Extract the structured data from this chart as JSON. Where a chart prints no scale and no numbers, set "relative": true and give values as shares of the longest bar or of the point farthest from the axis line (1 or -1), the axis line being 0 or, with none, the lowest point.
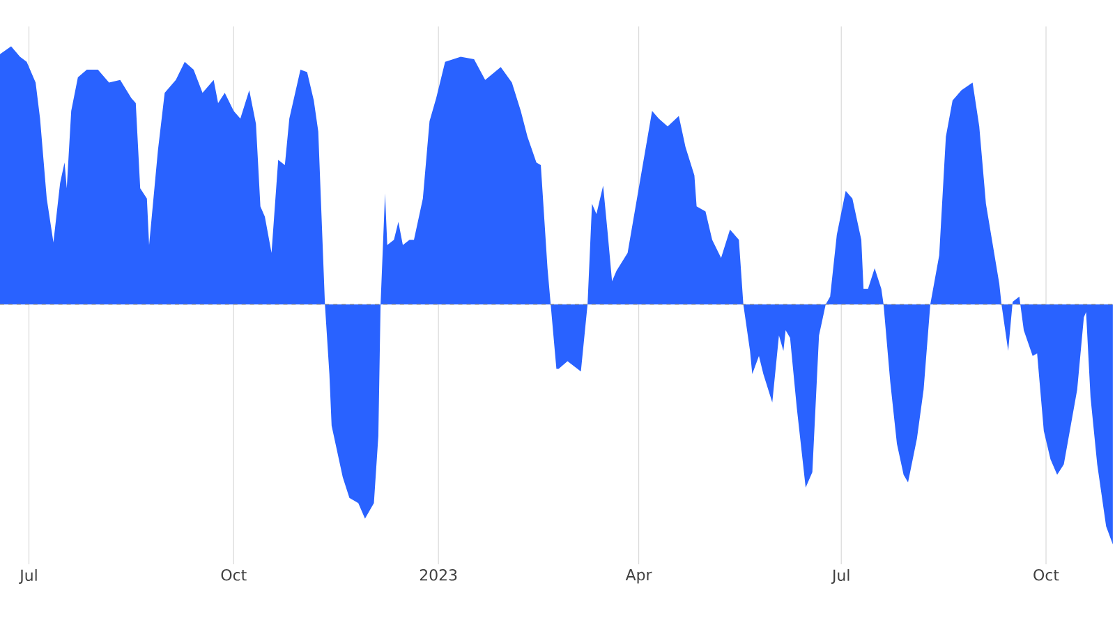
{
  "chart_data": {
    "type": "area",
    "relative": true,
    "color": "#2962ff",
    "grid": "x",
    "ref_lines": [
      {
        "axis": "y",
        "value": 0,
        "line_style": "dashed",
        "color": "#8c8c8c"
      }
    ],
    "xlim": [
      "2022-06-18",
      "2023-11-01"
    ],
    "xticks": [
      {
        "value": "2022-07-01",
        "label": "Jul"
      },
      {
        "value": "2022-10-01",
        "label": "Oct"
      },
      {
        "value": "2023-01-01",
        "label": "2023"
      },
      {
        "value": "2023-04-01",
        "label": "Apr"
      },
      {
        "value": "2023-07-01",
        "label": "Jul"
      },
      {
        "value": "2023-10-01",
        "label": "Oct"
      }
    ],
    "x": [
      "2022-06-18",
      "2022-06-23",
      "2022-06-27",
      "2022-06-30",
      "2022-07-04",
      "2022-07-06",
      "2022-07-09",
      "2022-07-12",
      "2022-07-15",
      "2022-07-17",
      "2022-07-18",
      "2022-07-20",
      "2022-07-23",
      "2022-07-27",
      "2022-08-01",
      "2022-08-06",
      "2022-08-11",
      "2022-08-16",
      "2022-08-18",
      "2022-08-20",
      "2022-08-23",
      "2022-08-24",
      "2022-08-28",
      "2022-08-31",
      "2022-09-05",
      "2022-09-09",
      "2022-09-13",
      "2022-09-17",
      "2022-09-22",
      "2022-09-24",
      "2022-09-27",
      "2022-10-01",
      "2022-10-04",
      "2022-10-08",
      "2022-10-11",
      "2022-10-13",
      "2022-10-15",
      "2022-10-18",
      "2022-10-21",
      "2022-10-24",
      "2022-10-26",
      "2022-10-31",
      "2022-11-03",
      "2022-11-06",
      "2022-11-08",
      "2022-11-11",
      "2022-11-13",
      "2022-11-14",
      "2022-11-19",
      "2022-11-22",
      "2022-11-26",
      "2022-11-29",
      "2022-12-03",
      "2022-12-05",
      "2022-12-06",
      "2022-12-08",
      "2022-12-09",
      "2022-12-12",
      "2022-12-14",
      "2022-12-16",
      "2022-12-19",
      "2022-12-21",
      "2022-12-25",
      "2022-12-28",
      "2022-12-31",
      "2023-01-04",
      "2023-01-11",
      "2023-01-17",
      "2023-01-22",
      "2023-01-29",
      "2023-02-03",
      "2023-02-07",
      "2023-02-10",
      "2023-02-14",
      "2023-02-16",
      "2023-02-19",
      "2023-02-23",
      "2023-02-24",
      "2023-02-28",
      "2023-03-06",
      "2023-03-09",
      "2023-03-11",
      "2023-03-13",
      "2023-03-16",
      "2023-03-18",
      "2023-03-20",
      "2023-03-22",
      "2023-03-27",
      "2023-04-01",
      "2023-04-07",
      "2023-04-10",
      "2023-04-14",
      "2023-04-19",
      "2023-04-22",
      "2023-04-26",
      "2023-04-27",
      "2023-05-01",
      "2023-05-04",
      "2023-05-08",
      "2023-05-12",
      "2023-05-16",
      "2023-05-18",
      "2023-05-21",
      "2023-05-22",
      "2023-05-25",
      "2023-05-27",
      "2023-05-31",
      "2023-06-03",
      "2023-06-05",
      "2023-06-06",
      "2023-06-08",
      "2023-06-11",
      "2023-06-15",
      "2023-06-18",
      "2023-06-21",
      "2023-06-24",
      "2023-06-26",
      "2023-06-29",
      "2023-07-03",
      "2023-07-06",
      "2023-07-10",
      "2023-07-11",
      "2023-07-13",
      "2023-07-16",
      "2023-07-19",
      "2023-07-20",
      "2023-07-23",
      "2023-07-26",
      "2023-07-29",
      "2023-07-31",
      "2023-08-04",
      "2023-08-07",
      "2023-08-10",
      "2023-08-14",
      "2023-08-17",
      "2023-08-20",
      "2023-08-24",
      "2023-08-29",
      "2023-09-01",
      "2023-09-04",
      "2023-09-10",
      "2023-09-11",
      "2023-09-14",
      "2023-09-16",
      "2023-09-19",
      "2023-09-21",
      "2023-09-25",
      "2023-09-27",
      "2023-09-30",
      "2023-10-03",
      "2023-10-06",
      "2023-10-09",
      "2023-10-15",
      "2023-10-18",
      "2023-10-19",
      "2023-10-21",
      "2023-10-24",
      "2023-10-28",
      "2023-10-31"
    ],
    "values": [
      0.97,
      1.0,
      0.96,
      0.94,
      0.86,
      0.72,
      0.41,
      0.24,
      0.47,
      0.55,
      0.45,
      0.75,
      0.88,
      0.91,
      0.91,
      0.86,
      0.87,
      0.8,
      0.78,
      0.45,
      0.41,
      0.23,
      0.6,
      0.82,
      0.87,
      0.94,
      0.91,
      0.82,
      0.87,
      0.78,
      0.82,
      0.75,
      0.72,
      0.83,
      0.7,
      0.38,
      0.34,
      0.2,
      0.56,
      0.54,
      0.72,
      0.91,
      0.9,
      0.79,
      0.67,
      0,
      -0.27,
      -0.47,
      -0.67,
      -0.75,
      -0.77,
      -0.83,
      -0.77,
      -0.51,
      0,
      0.43,
      0.23,
      0.25,
      0.32,
      0.23,
      0.25,
      0.25,
      0.41,
      0.71,
      0.8,
      0.94,
      0.96,
      0.95,
      0.87,
      0.92,
      0.86,
      0.75,
      0.65,
      0.55,
      0.54,
      0.14,
      -0.25,
      -0.25,
      -0.22,
      -0.26,
      0,
      0.39,
      0.35,
      0.46,
      0.28,
      0.09,
      0.13,
      0.2,
      0.45,
      0.75,
      0.72,
      0.69,
      0.73,
      0.61,
      0.5,
      0.38,
      0.36,
      0.25,
      0.18,
      0.29,
      0.25,
      0,
      -0.18,
      -0.27,
      -0.2,
      -0.27,
      -0.38,
      -0.12,
      -0.18,
      -0.1,
      -0.13,
      -0.4,
      -0.71,
      -0.65,
      -0.12,
      0,
      0.03,
      0.27,
      0.44,
      0.41,
      0.25,
      0.06,
      0.06,
      0.14,
      0.06,
      0,
      -0.3,
      -0.54,
      -0.66,
      -0.69,
      -0.52,
      -0.33,
      0,
      0.19,
      0.65,
      0.79,
      0.83,
      0.86,
      0.69,
      0.39,
      0.08,
      0,
      -0.18,
      0.01,
      0.03,
      -0.1,
      -0.2,
      -0.19,
      -0.49,
      -0.6,
      -0.66,
      -0.62,
      -0.33,
      -0.05,
      -0.03,
      -0.36,
      -0.62,
      -0.86,
      -0.93
    ]
  }
}
